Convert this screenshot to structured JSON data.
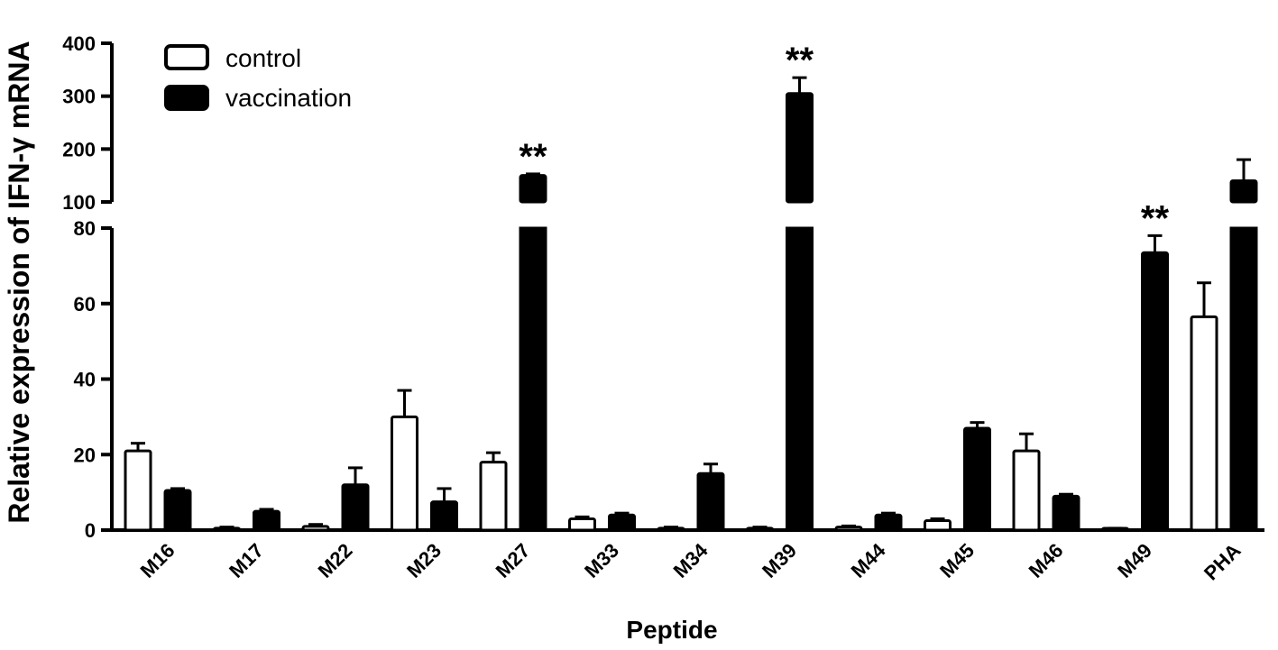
{
  "chart_data": {
    "type": "bar",
    "xlabel": "Peptide",
    "ylabel": "Relative expression of IFN-γ mRNA",
    "categories": [
      "M16",
      "M17",
      "M22",
      "M23",
      "M27",
      "M33",
      "M34",
      "M39",
      "M44",
      "M45",
      "M46",
      "M49",
      "PHA"
    ],
    "series": [
      {
        "name": "control",
        "fill": "#ffffff",
        "values": [
          21,
          0.5,
          1,
          30,
          18,
          3,
          0.5,
          0.5,
          0.8,
          2.5,
          21,
          0.3,
          56.5
        ],
        "errors": [
          2,
          0.3,
          0.5,
          7,
          2.5,
          0.5,
          0.3,
          0.3,
          0.3,
          0.5,
          4.5,
          0.2,
          9
        ]
      },
      {
        "name": "vaccination",
        "fill": "#000000",
        "values": [
          10.5,
          5,
          12,
          7.5,
          150,
          4,
          15,
          305,
          4,
          27,
          9,
          73.5,
          140
        ],
        "errors": [
          0.5,
          0.5,
          4.5,
          3.5,
          3,
          0.5,
          2.5,
          30,
          0.5,
          1.5,
          0.5,
          4.5,
          40
        ]
      }
    ],
    "y_axis": {
      "lower_range": [
        0,
        80
      ],
      "lower_ticks": [
        "0",
        "20",
        "40",
        "60",
        "80"
      ],
      "upper_range": [
        100,
        400
      ],
      "upper_ticks": [
        "100",
        "200",
        "300",
        "400"
      ],
      "broken": true
    },
    "annotations": [
      {
        "category": "M27",
        "text": "**"
      },
      {
        "category": "M39",
        "text": "**"
      },
      {
        "category": "M49",
        "text": "**"
      }
    ],
    "legend_position": "top-left"
  }
}
